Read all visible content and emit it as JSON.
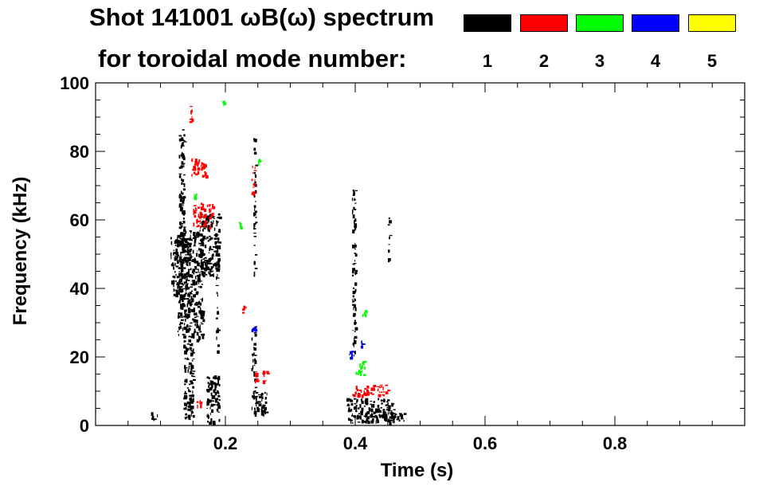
{
  "title_line1": "Shot 141001 ωB(ω) spectrum",
  "title_line2": "for toroidal mode number:",
  "legend": [
    {
      "mode": "1",
      "color": "#000000"
    },
    {
      "mode": "2",
      "color": "#ff0000"
    },
    {
      "mode": "3",
      "color": "#00ff00"
    },
    {
      "mode": "4",
      "color": "#0000ff"
    },
    {
      "mode": "5",
      "color": "#ffff00"
    }
  ],
  "chart_data": {
    "type": "heatmap",
    "title": "Shot 141001 ωB(ω) spectrum",
    "xlabel": "Time (s)",
    "ylabel": "Frequency (kHz)",
    "xlim": [
      0.0,
      1.0
    ],
    "ylim": [
      0,
      100
    ],
    "x_ticks": [
      {
        "value": 0.2,
        "label": "0.2"
      },
      {
        "value": 0.4,
        "label": "0.4"
      },
      {
        "value": 0.6,
        "label": "0.6"
      },
      {
        "value": 0.8,
        "label": "0.8"
      }
    ],
    "y_ticks": [
      {
        "value": 0,
        "label": "0"
      },
      {
        "value": 20,
        "label": "20"
      },
      {
        "value": 40,
        "label": "40"
      },
      {
        "value": 60,
        "label": "60"
      },
      {
        "value": 80,
        "label": "80"
      },
      {
        "value": 100,
        "label": "100"
      }
    ],
    "series": [
      {
        "name": "n=1",
        "color": "#000000",
        "regions": [
          {
            "t": [
              0.085,
              0.095
            ],
            "f": [
              2,
              4
            ]
          },
          {
            "t": [
              0.115,
              0.145
            ],
            "f": [
              38,
              55
            ]
          },
          {
            "t": [
              0.125,
              0.165
            ],
            "f": [
              25,
              57
            ]
          },
          {
            "t": [
              0.135,
              0.15
            ],
            "f": [
              2,
              25
            ]
          },
          {
            "t": [
              0.128,
              0.136
            ],
            "f": [
              55,
              88
            ]
          },
          {
            "t": [
              0.16,
              0.19
            ],
            "f": [
              44,
              62
            ]
          },
          {
            "t": [
              0.17,
              0.19
            ],
            "f": [
              1,
              15
            ]
          },
          {
            "t": [
              0.185,
              0.188
            ],
            "f": [
              20,
              60
            ]
          },
          {
            "t": [
              0.24,
              0.265
            ],
            "f": [
              3,
              10
            ]
          },
          {
            "t": [
              0.24,
              0.245
            ],
            "f": [
              10,
              30
            ]
          },
          {
            "t": [
              0.243,
              0.246
            ],
            "f": [
              40,
              84
            ]
          },
          {
            "t": [
              0.385,
              0.46
            ],
            "f": [
              1,
              8
            ]
          },
          {
            "t": [
              0.395,
              0.4
            ],
            "f": [
              20,
              70
            ]
          },
          {
            "t": [
              0.44,
              0.475
            ],
            "f": [
              1,
              4
            ]
          },
          {
            "t": [
              0.45,
              0.452
            ],
            "f": [
              48,
              62
            ]
          }
        ]
      },
      {
        "name": "n=2",
        "color": "#ff0000",
        "regions": [
          {
            "t": [
              0.15,
              0.18
            ],
            "f": [
              58,
              65
            ]
          },
          {
            "t": [
              0.145,
              0.17
            ],
            "f": [
              73,
              78
            ]
          },
          {
            "t": [
              0.144,
              0.148
            ],
            "f": [
              88,
              94
            ]
          },
          {
            "t": [
              0.24,
              0.245
            ],
            "f": [
              67,
              76
            ]
          },
          {
            "t": [
              0.245,
              0.265
            ],
            "f": [
              13,
              16
            ]
          },
          {
            "t": [
              0.395,
              0.45
            ],
            "f": [
              9,
              12
            ]
          },
          {
            "t": [
              0.155,
              0.165
            ],
            "f": [
              6,
              8
            ]
          },
          {
            "t": [
              0.225,
              0.23
            ],
            "f": [
              33,
              35
            ]
          }
        ]
      },
      {
        "name": "n=3",
        "color": "#00ff00",
        "regions": [
          {
            "t": [
              0.15,
              0.155
            ],
            "f": [
              66,
              68
            ]
          },
          {
            "t": [
              0.25,
              0.253
            ],
            "f": [
              76,
              78
            ]
          },
          {
            "t": [
              0.4,
              0.415
            ],
            "f": [
              15,
              19
            ]
          },
          {
            "t": [
              0.22,
              0.224
            ],
            "f": [
              58,
              61
            ]
          },
          {
            "t": [
              0.195,
              0.197
            ],
            "f": [
              94,
              95
            ]
          },
          {
            "t": [
              0.41,
              0.415
            ],
            "f": [
              32,
              34
            ]
          }
        ]
      },
      {
        "name": "n=4",
        "color": "#0000ff",
        "regions": [
          {
            "t": [
              0.24,
              0.245
            ],
            "f": [
              27,
              29
            ]
          },
          {
            "t": [
              0.39,
              0.395
            ],
            "f": [
              20,
              22
            ]
          },
          {
            "t": [
              0.408,
              0.412
            ],
            "f": [
              23,
              25
            ]
          }
        ]
      },
      {
        "name": "n=5",
        "color": "#ffff00",
        "regions": []
      }
    ]
  }
}
